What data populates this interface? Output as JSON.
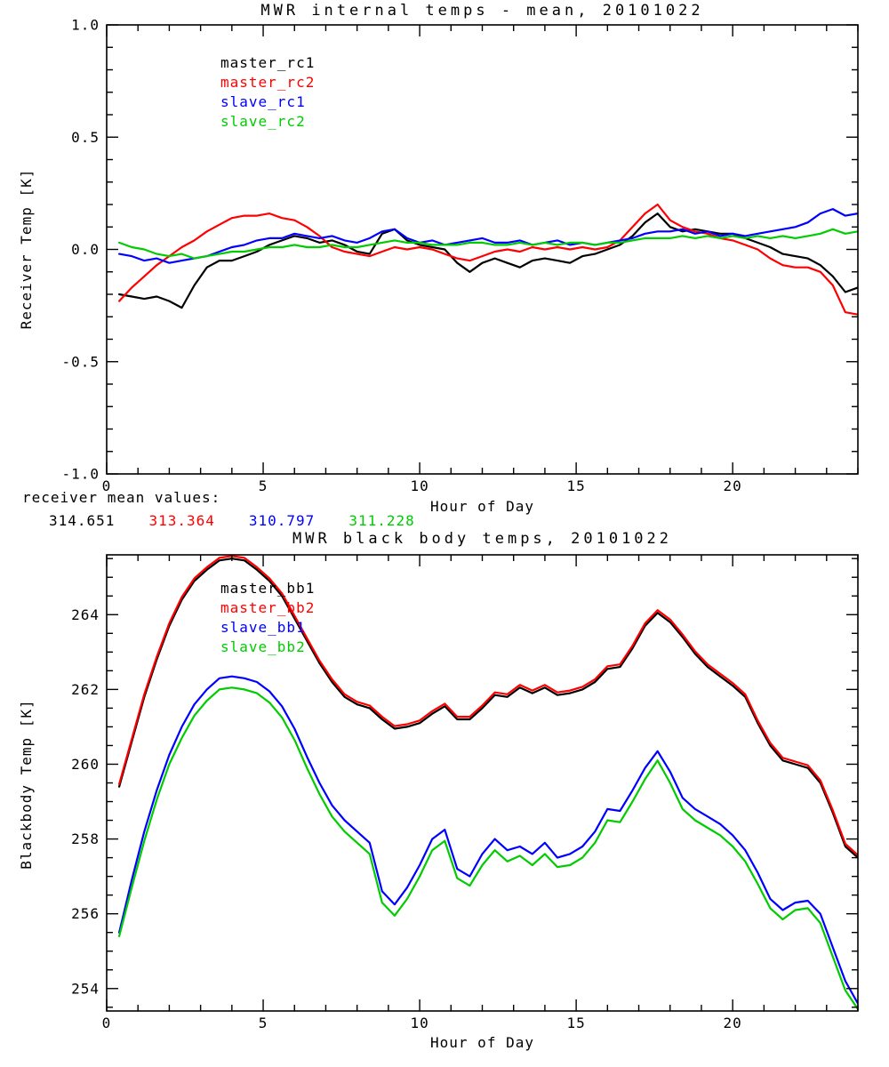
{
  "chart_data": [
    {
      "type": "line",
      "title": "MWR internal temps - mean, 20101022",
      "xlabel": "Hour of Day",
      "ylabel": "Receiver Temp [K]",
      "xlim": [
        0,
        24
      ],
      "ylim": [
        -1.0,
        1.0
      ],
      "grid": false,
      "legend_position": "upper-left-inside",
      "xticks": {
        "major": [
          0,
          5,
          10,
          15,
          20
        ],
        "labels": [
          "0",
          "5",
          "10",
          "15",
          "20"
        ],
        "minor_step": 1
      },
      "yticks": {
        "major": [
          -1.0,
          -0.5,
          0.0,
          0.5,
          1.0
        ],
        "labels": [
          "-1.0",
          "-0.5",
          "0.0",
          "0.5",
          "1.0"
        ],
        "minor_step": 0.1
      },
      "x": [
        0.4,
        0.8,
        1.2,
        1.6,
        2.0,
        2.4,
        2.8,
        3.2,
        3.6,
        4.0,
        4.4,
        4.8,
        5.2,
        5.6,
        6.0,
        6.4,
        6.8,
        7.2,
        7.6,
        8.0,
        8.4,
        8.8,
        9.2,
        9.6,
        10.0,
        10.4,
        10.8,
        11.2,
        11.6,
        12.0,
        12.4,
        12.8,
        13.2,
        13.6,
        14.0,
        14.4,
        14.8,
        15.2,
        15.6,
        16.0,
        16.4,
        16.8,
        17.2,
        17.6,
        18.0,
        18.4,
        18.8,
        19.2,
        19.6,
        20.0,
        20.4,
        20.8,
        21.2,
        21.6,
        22.0,
        22.4,
        22.8,
        23.2,
        23.6,
        24.0
      ],
      "series": [
        {
          "name": "master_rc1",
          "color": "#000000",
          "values": [
            -0.2,
            -0.21,
            -0.22,
            -0.21,
            -0.23,
            -0.26,
            -0.16,
            -0.08,
            -0.05,
            -0.05,
            -0.03,
            -0.01,
            0.02,
            0.04,
            0.06,
            0.05,
            0.03,
            0.04,
            0.02,
            -0.01,
            -0.02,
            0.07,
            0.09,
            0.04,
            0.02,
            0.01,
            0.0,
            -0.06,
            -0.1,
            -0.06,
            -0.04,
            -0.06,
            -0.08,
            -0.05,
            -0.04,
            -0.05,
            -0.06,
            -0.03,
            -0.02,
            0.0,
            0.02,
            0.06,
            0.12,
            0.16,
            0.1,
            0.08,
            0.09,
            0.08,
            0.07,
            0.07,
            0.05,
            0.03,
            0.01,
            -0.02,
            -0.03,
            -0.04,
            -0.07,
            -0.12,
            -0.19,
            -0.17
          ]
        },
        {
          "name": "master_rc2",
          "color": "#ff0000",
          "values": [
            -0.23,
            -0.17,
            -0.12,
            -0.07,
            -0.03,
            0.01,
            0.04,
            0.08,
            0.11,
            0.14,
            0.15,
            0.15,
            0.16,
            0.14,
            0.13,
            0.1,
            0.06,
            0.01,
            -0.01,
            -0.02,
            -0.03,
            -0.01,
            0.01,
            0.0,
            0.01,
            0.0,
            -0.02,
            -0.04,
            -0.05,
            -0.03,
            -0.01,
            0.0,
            -0.01,
            0.01,
            0.0,
            0.01,
            0.0,
            0.01,
            0.0,
            0.01,
            0.04,
            0.1,
            0.16,
            0.2,
            0.13,
            0.1,
            0.08,
            0.07,
            0.05,
            0.04,
            0.02,
            0.0,
            -0.04,
            -0.07,
            -0.08,
            -0.08,
            -0.1,
            -0.16,
            -0.28,
            -0.29
          ]
        },
        {
          "name": "slave_rc1",
          "color": "#0000ff",
          "values": [
            -0.02,
            -0.03,
            -0.05,
            -0.04,
            -0.06,
            -0.05,
            -0.04,
            -0.03,
            -0.01,
            0.01,
            0.02,
            0.04,
            0.05,
            0.05,
            0.07,
            0.06,
            0.05,
            0.06,
            0.04,
            0.03,
            0.05,
            0.08,
            0.09,
            0.05,
            0.03,
            0.04,
            0.02,
            0.03,
            0.04,
            0.05,
            0.03,
            0.03,
            0.04,
            0.02,
            0.03,
            0.04,
            0.02,
            0.03,
            0.02,
            0.03,
            0.04,
            0.05,
            0.07,
            0.08,
            0.08,
            0.09,
            0.07,
            0.08,
            0.06,
            0.07,
            0.06,
            0.07,
            0.08,
            0.09,
            0.1,
            0.12,
            0.16,
            0.18,
            0.15,
            0.16
          ]
        },
        {
          "name": "slave_rc2",
          "color": "#00cc00",
          "values": [
            0.03,
            0.01,
            0.0,
            -0.02,
            -0.03,
            -0.02,
            -0.04,
            -0.03,
            -0.02,
            -0.01,
            -0.01,
            0.0,
            0.01,
            0.01,
            0.02,
            0.01,
            0.01,
            0.02,
            0.01,
            0.01,
            0.02,
            0.03,
            0.04,
            0.03,
            0.03,
            0.02,
            0.02,
            0.02,
            0.03,
            0.03,
            0.02,
            0.02,
            0.03,
            0.02,
            0.03,
            0.02,
            0.03,
            0.03,
            0.02,
            0.03,
            0.03,
            0.04,
            0.05,
            0.05,
            0.05,
            0.06,
            0.05,
            0.06,
            0.05,
            0.06,
            0.05,
            0.06,
            0.05,
            0.06,
            0.05,
            0.06,
            0.07,
            0.09,
            0.07,
            0.08
          ]
        }
      ]
    },
    {
      "type": "line",
      "title": "MWR black body temps, 20101022",
      "xlabel": "Hour of Day",
      "ylabel": "Blackbody Temp [K]",
      "xlim": [
        0,
        24
      ],
      "ylim": [
        253.4,
        265.6
      ],
      "grid": false,
      "legend_position": "upper-left-inside",
      "xticks": {
        "major": [
          0,
          5,
          10,
          15,
          20
        ],
        "labels": [
          "0",
          "5",
          "10",
          "15",
          "20"
        ],
        "minor_step": 1
      },
      "yticks": {
        "major": [
          254,
          256,
          258,
          260,
          262,
          264
        ],
        "labels": [
          "254",
          "256",
          "258",
          "260",
          "262",
          "264"
        ],
        "minor_step": 0.5
      },
      "x": [
        0.4,
        0.8,
        1.2,
        1.6,
        2.0,
        2.4,
        2.8,
        3.2,
        3.6,
        4.0,
        4.4,
        4.8,
        5.2,
        5.6,
        6.0,
        6.4,
        6.8,
        7.2,
        7.6,
        8.0,
        8.4,
        8.8,
        9.2,
        9.6,
        10.0,
        10.4,
        10.8,
        11.2,
        11.6,
        12.0,
        12.4,
        12.8,
        13.2,
        13.6,
        14.0,
        14.4,
        14.8,
        15.2,
        15.6,
        16.0,
        16.4,
        16.8,
        17.2,
        17.6,
        18.0,
        18.4,
        18.8,
        19.2,
        19.6,
        20.0,
        20.4,
        20.8,
        21.2,
        21.6,
        22.0,
        22.4,
        22.8,
        23.2,
        23.6,
        24.0
      ],
      "series": [
        {
          "name": "master_bb1",
          "color": "#000000",
          "values": [
            259.4,
            260.6,
            261.8,
            262.8,
            263.7,
            264.4,
            264.9,
            265.2,
            265.45,
            265.5,
            265.45,
            265.2,
            264.9,
            264.5,
            263.9,
            263.3,
            262.7,
            262.2,
            261.8,
            261.6,
            261.5,
            261.2,
            260.95,
            261.0,
            261.1,
            261.35,
            261.55,
            261.2,
            261.2,
            261.5,
            261.85,
            261.8,
            262.05,
            261.9,
            262.05,
            261.85,
            261.9,
            262.0,
            262.2,
            262.55,
            262.6,
            263.1,
            263.7,
            264.05,
            263.8,
            263.4,
            262.95,
            262.6,
            262.35,
            262.1,
            261.8,
            261.1,
            260.5,
            260.1,
            260.0,
            259.9,
            259.5,
            258.7,
            257.8,
            257.5
          ]
        },
        {
          "name": "master_bb2",
          "color": "#ff0000",
          "values": [
            259.47,
            260.67,
            261.87,
            262.87,
            263.77,
            264.47,
            264.97,
            265.27,
            265.52,
            265.57,
            265.52,
            265.27,
            264.97,
            264.57,
            263.97,
            263.37,
            262.77,
            262.27,
            261.87,
            261.67,
            261.57,
            261.27,
            261.02,
            261.07,
            261.17,
            261.42,
            261.62,
            261.27,
            261.27,
            261.57,
            261.92,
            261.87,
            262.12,
            261.97,
            262.12,
            261.92,
            261.97,
            262.07,
            262.27,
            262.62,
            262.67,
            263.17,
            263.77,
            264.12,
            263.87,
            263.47,
            263.02,
            262.67,
            262.42,
            262.17,
            261.87,
            261.17,
            260.57,
            260.17,
            260.07,
            259.97,
            259.57,
            258.77,
            257.87,
            257.57
          ]
        },
        {
          "name": "slave_bb1",
          "color": "#0000ff",
          "values": [
            255.5,
            256.9,
            258.2,
            259.3,
            260.25,
            261.0,
            261.6,
            262.0,
            262.3,
            262.35,
            262.3,
            262.2,
            261.95,
            261.55,
            260.95,
            260.2,
            259.5,
            258.9,
            258.5,
            258.2,
            257.9,
            256.6,
            256.25,
            256.7,
            257.3,
            258.0,
            258.25,
            257.2,
            257.0,
            257.6,
            258.0,
            257.7,
            257.8,
            257.6,
            257.9,
            257.5,
            257.6,
            257.8,
            258.2,
            258.8,
            258.75,
            259.3,
            259.9,
            260.35,
            259.8,
            259.1,
            258.8,
            258.6,
            258.4,
            258.1,
            257.7,
            257.1,
            256.4,
            256.1,
            256.3,
            256.35,
            256.0,
            255.1,
            254.2,
            253.6
          ]
        },
        {
          "name": "slave_bb2",
          "color": "#00cc00",
          "values": [
            255.4,
            256.7,
            257.95,
            259.05,
            260.0,
            260.7,
            261.3,
            261.7,
            262.0,
            262.05,
            262.0,
            261.9,
            261.65,
            261.25,
            260.65,
            259.9,
            259.2,
            258.6,
            258.2,
            257.9,
            257.6,
            256.3,
            255.95,
            256.4,
            257.0,
            257.7,
            257.95,
            256.95,
            256.75,
            257.3,
            257.7,
            257.4,
            257.55,
            257.3,
            257.6,
            257.25,
            257.3,
            257.5,
            257.9,
            258.5,
            258.45,
            259.0,
            259.6,
            260.1,
            259.5,
            258.8,
            258.5,
            258.3,
            258.1,
            257.8,
            257.4,
            256.8,
            256.15,
            255.85,
            256.1,
            256.15,
            255.75,
            254.85,
            253.95,
            253.45
          ]
        }
      ]
    }
  ],
  "annotation": {
    "label": "receiver mean values:",
    "values": [
      {
        "text": "314.651",
        "color": "#000000"
      },
      {
        "text": "313.364",
        "color": "#ff0000"
      },
      {
        "text": "310.797",
        "color": "#0000ff"
      },
      {
        "text": "311.228",
        "color": "#00cc00"
      }
    ]
  }
}
